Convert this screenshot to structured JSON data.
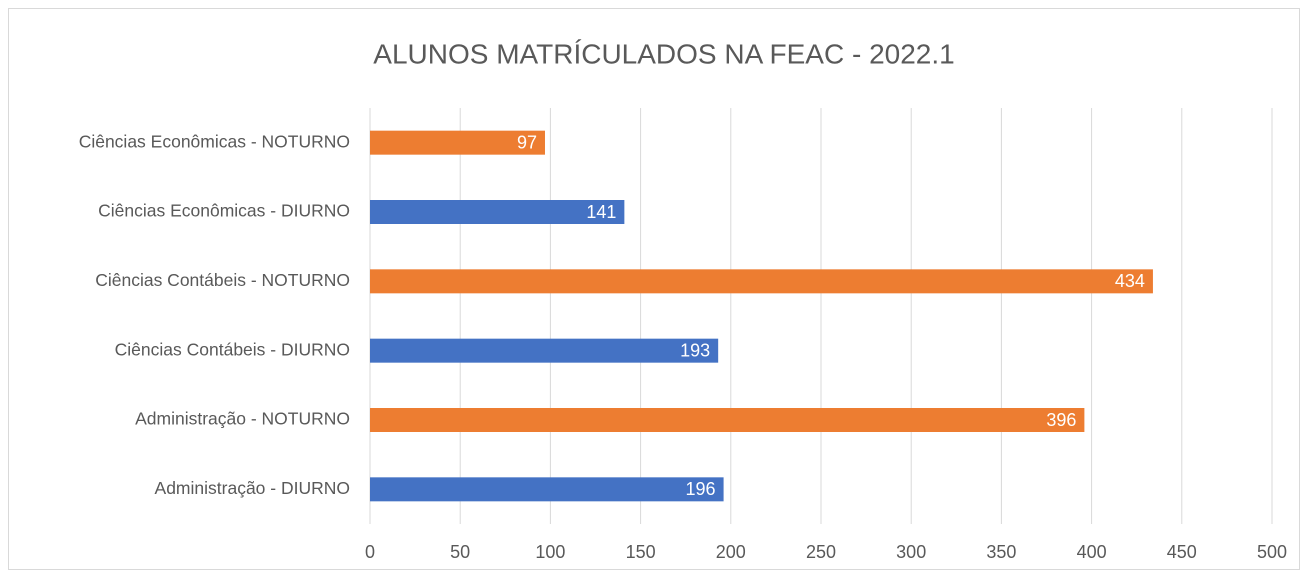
{
  "chart_data": {
    "type": "barh",
    "title": "ALUNOS MATRÍCULADOS NA FEAC - 2022.1",
    "categories": [
      "Administração - DIURNO",
      "Administração - NOTURNO",
      "Ciências Contábeis - DIURNO",
      "Ciências Contábeis - NOTURNO",
      "Ciências Econômicas - DIURNO",
      "Ciências Econômicas - NOTURNO"
    ],
    "values": [
      196,
      396,
      193,
      434,
      141,
      97
    ],
    "colors": [
      "#4472c4",
      "#ed7d31",
      "#4472c4",
      "#ed7d31",
      "#4472c4",
      "#ed7d31"
    ],
    "xlim": [
      0,
      500
    ],
    "xticks": [
      0,
      50,
      100,
      150,
      200,
      250,
      300,
      350,
      400,
      450,
      500
    ],
    "grid": true
  }
}
